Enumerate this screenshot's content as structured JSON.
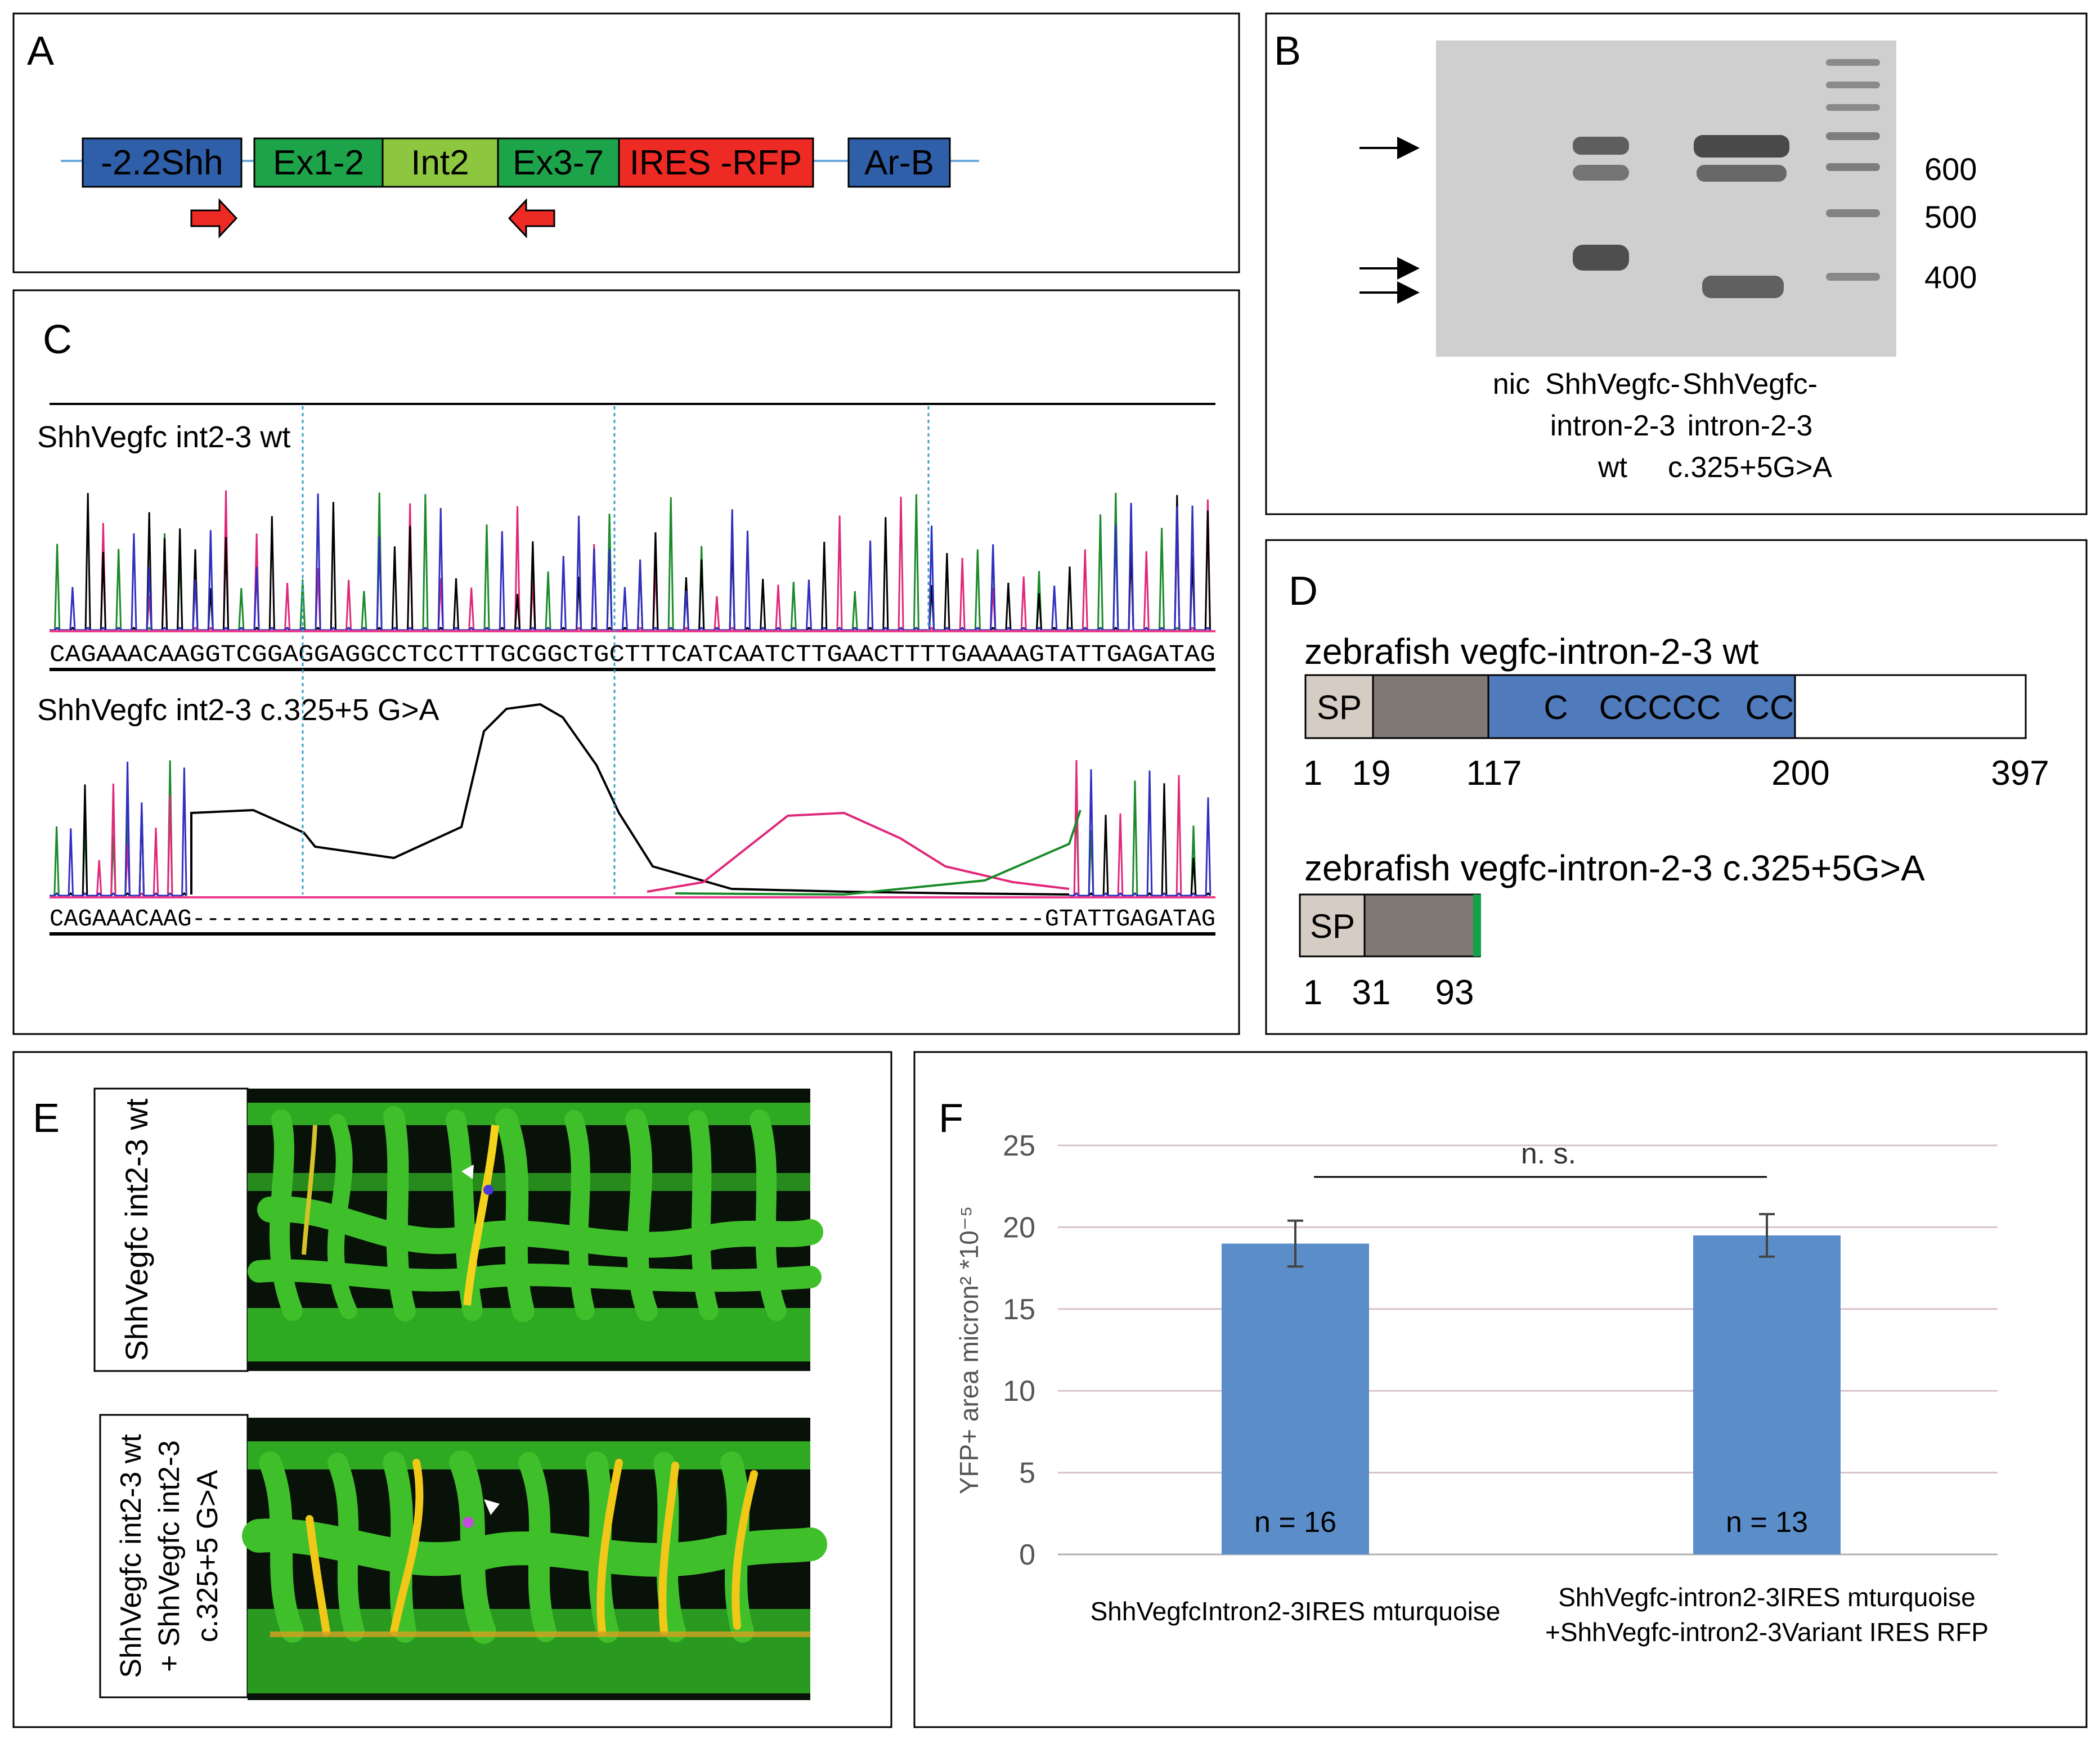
{
  "panels": {
    "a": {
      "label": "A",
      "elements": [
        "-2.2Shh",
        "Ex1-2",
        "Int2",
        "Ex3-7",
        "IRES -RFP",
        "Ar-B"
      ],
      "colors": {
        "shh": "#2e5fa8",
        "exon": "#1da34a",
        "intron": "#8dc63f",
        "ires": "#ee2a24",
        "arb": "#2e5fa8",
        "primer": "#ee2a24",
        "line": "#6fa8dc"
      }
    },
    "b": {
      "label": "B",
      "markers": [
        "600",
        "500",
        "400"
      ],
      "lanes": [
        "nic",
        "ShhVegfc-",
        "intron-2-3",
        "wt",
        "ShhVegfc-",
        "intron-2-3",
        "c.325+5G>A"
      ]
    },
    "c": {
      "label": "C",
      "trace1_title": "ShhVegfc int2-3 wt",
      "trace1_seq": "CAGAAACAAGGTCGGAGGAGGCCTCCTTTGCGGCTGCTTTCATCAATCTTGAACTTTTGAAAAGTATTGAGATAG",
      "trace2_title": "ShhVegfc int2-3 c.325+5 G>A",
      "trace2_seq": "CAGAAACAAG------------------------------------------------------------GTATTGAGATAG"
    },
    "d": {
      "label": "D",
      "wt_title": "zebrafish vegfc-intron-2-3 wt",
      "wt_domains": [
        "SP",
        "C",
        "CCCCC",
        "CC"
      ],
      "wt_positions": [
        "1",
        "19",
        "117",
        "200",
        "397"
      ],
      "mut_title": "zebrafish vegfc-intron-2-3 c.325+5G>A",
      "mut_domains": [
        "SP"
      ],
      "mut_positions": [
        "1",
        "31",
        "93"
      ],
      "colors": {
        "sp": "#d5ccc4",
        "propep": "#7f7873",
        "vhd": "#4f7bbd",
        "stop": "#12a24a"
      }
    },
    "e": {
      "label": "E",
      "top_caption": "ShhVegfc int2-3 wt",
      "bottom_caption": [
        "ShhVegfc int2-3 wt",
        "+ ShhVegfc int2-3",
        "c.325+5 G>A"
      ]
    },
    "f": {
      "label": "F",
      "significance": "n. s."
    }
  },
  "chart_data": {
    "type": "bar",
    "ylabel": "YFP+ area micron² *10⁻⁵",
    "ylim": [
      0,
      25
    ],
    "yticks": [
      "0",
      "5",
      "10",
      "15",
      "20",
      "25"
    ],
    "categories": [
      "ShhVegfcIntron2-3IRES mturquoise",
      "ShhVegfc-intron2-3IRES mturquoise\n+ShhVegfc-intron2-3Variant IRES RFP"
    ],
    "category_lines": [
      [
        "ShhVegfcIntron2-3IRES mturquoise"
      ],
      [
        "ShhVegfc-intron2-3IRES mturquoise",
        "+ShhVegfc-intron2-3Variant IRES RFP"
      ]
    ],
    "values": [
      19.0,
      19.5
    ],
    "errors": [
      1.4,
      1.3
    ],
    "n_labels": [
      "n = 16",
      "n = 13"
    ],
    "bar_color": "#5b8ec9",
    "grid": true
  }
}
